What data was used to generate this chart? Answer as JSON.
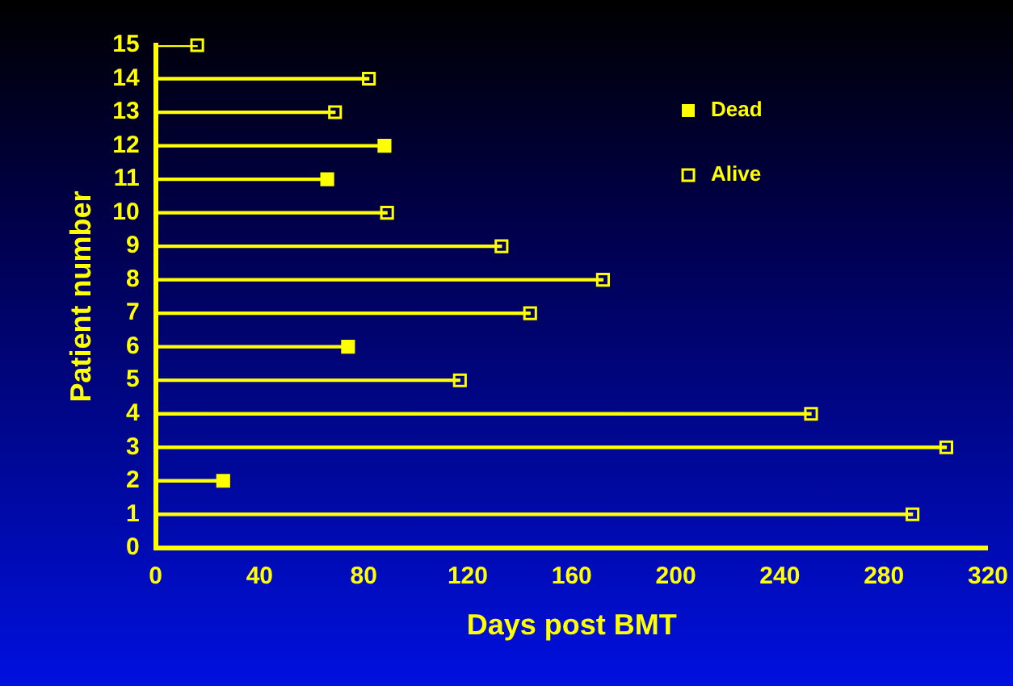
{
  "chart_data": {
    "type": "lollipop",
    "orientation": "horizontal",
    "xlabel": "Days post BMT",
    "ylabel": "Patient number",
    "categories": [
      "15",
      "14",
      "13",
      "12",
      "11",
      "10",
      "9",
      "8",
      "7",
      "6",
      "5",
      "4",
      "3",
      "2",
      "1",
      "0"
    ],
    "series": [
      {
        "name": "Dead",
        "color": "#ffff00",
        "marker": "square",
        "values": [
          null,
          null,
          null,
          88,
          66,
          null,
          null,
          null,
          null,
          74,
          null,
          null,
          null,
          26,
          null,
          null
        ]
      },
      {
        "name": "Alive",
        "color": "#ffff00",
        "marker": "square-open",
        "values": [
          16,
          82,
          69,
          null,
          null,
          89,
          133,
          172,
          144,
          null,
          117,
          252,
          304,
          null,
          291,
          null
        ]
      }
    ],
    "xlim": [
      0,
      320
    ],
    "xticks": [
      0,
      40,
      80,
      120,
      160,
      200,
      240,
      280,
      320
    ],
    "grid": false,
    "legend": "top right"
  }
}
